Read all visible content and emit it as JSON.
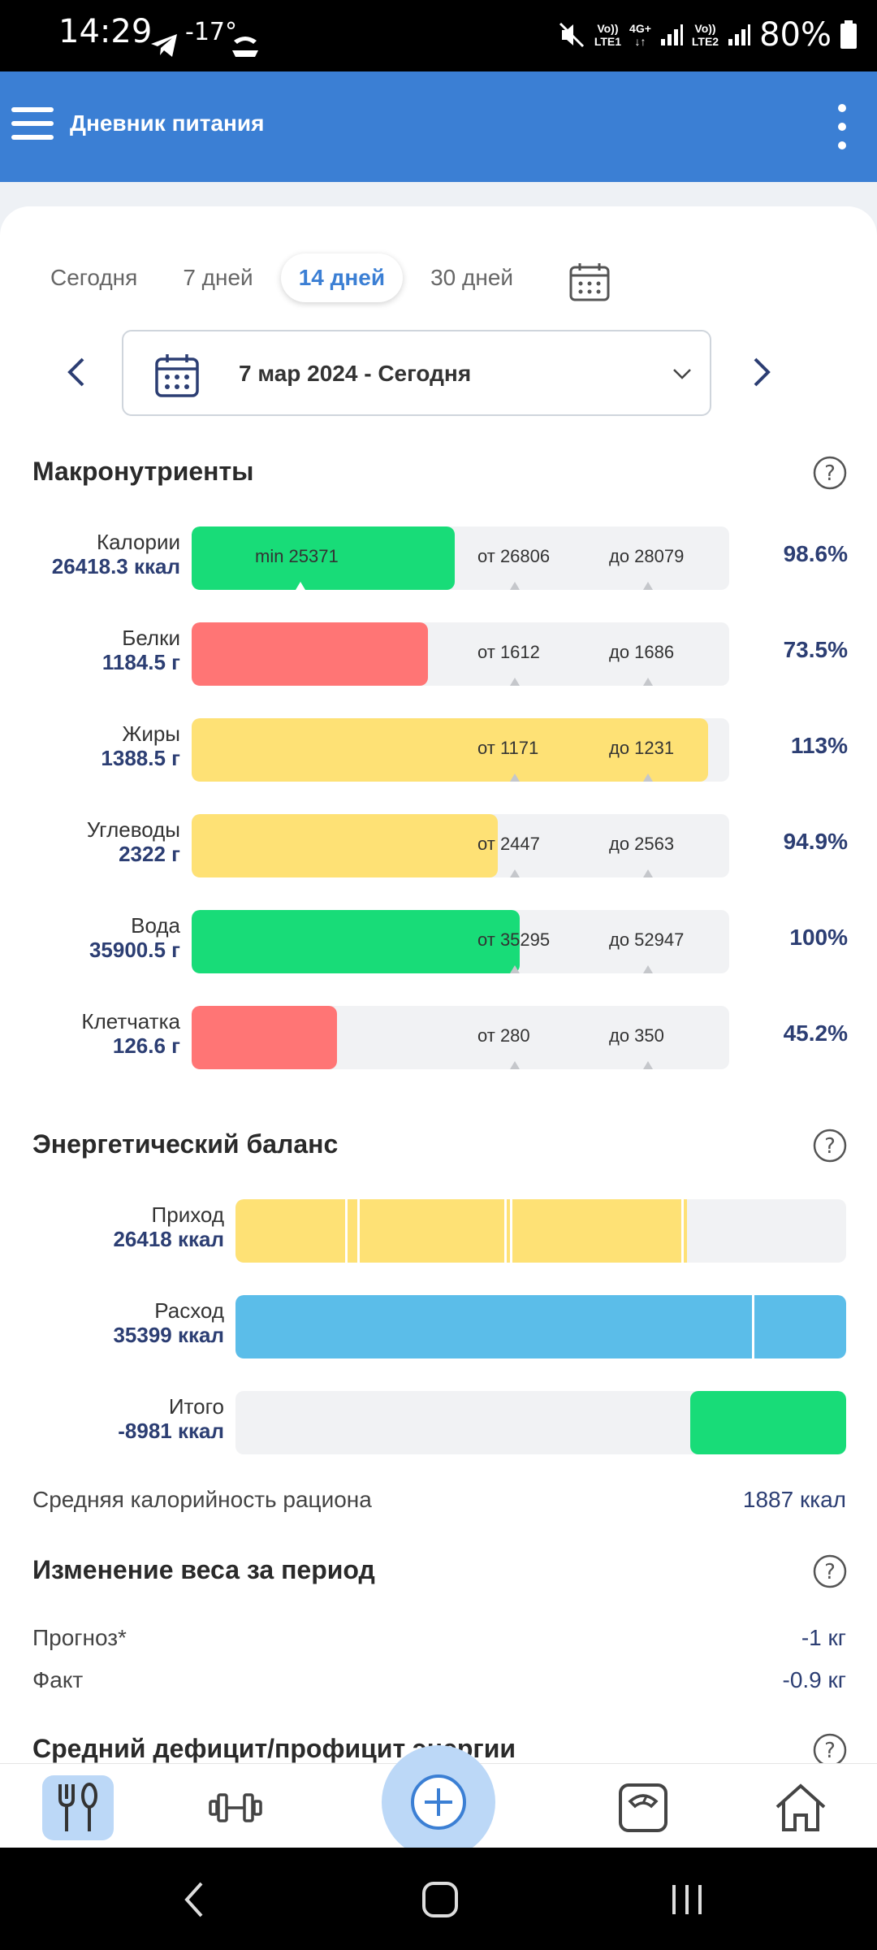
{
  "status": {
    "time": "14:29",
    "temp": "-17°",
    "lte1_top": "Vo))",
    "lte1_bottom": "LTE1",
    "net_top": "4G+",
    "net_bottom": "↓↑",
    "lte2_top": "Vo))",
    "lte2_bottom": "LTE2",
    "battery": "80%"
  },
  "appbar": {
    "title": "Дневник питания"
  },
  "periods": [
    "Сегодня",
    "7 дней",
    "14 дней",
    "30 дней"
  ],
  "period_active": 2,
  "date_range": "7 мар 2024 - Сегодня",
  "macros": {
    "title": "Макронутриенты",
    "rows": [
      {
        "name": "Калории",
        "value": "26418.3 ккал",
        "fill": 0.49,
        "color": "#18dc78",
        "min_label": "min 25371",
        "from": "от 26806",
        "to": "до 28079",
        "pct": "98.6%"
      },
      {
        "name": "Белки",
        "value": "1184.5 г",
        "fill": 0.44,
        "color": "#ff7575",
        "from": "от 1612",
        "to": "до 1686",
        "pct": "73.5%"
      },
      {
        "name": "Жиры",
        "value": "1388.5 г",
        "fill": 0.96,
        "color": "#fee175",
        "from": "от 1171",
        "to": "до 1231",
        "pct": "113%"
      },
      {
        "name": "Углеводы",
        "value": "2322 г",
        "fill": 0.57,
        "color": "#fee175",
        "from": "от 2447",
        "to": "до 2563",
        "pct": "94.9%"
      },
      {
        "name": "Вода",
        "value": "35900.5 г",
        "fill": 0.61,
        "color": "#18dc78",
        "from": "от 35295",
        "to": "до 52947",
        "pct": "100%"
      },
      {
        "name": "Клетчатка",
        "value": "126.6 г",
        "fill": 0.27,
        "color": "#ff7575",
        "from": "от 280",
        "to": "до 350",
        "pct": "45.2%"
      }
    ]
  },
  "energy": {
    "title": "Энергетический баланс",
    "rows": [
      {
        "name": "Приход",
        "value": "26418 ккал",
        "color": "#fee175",
        "start": 0,
        "end": 0.74,
        "dividers": [
          0.18,
          0.2,
          0.44,
          0.45,
          0.73
        ]
      },
      {
        "name": "Расход",
        "value": "35399 ккал",
        "color": "#5bbde9",
        "start": 0,
        "end": 1.0,
        "dividers": [
          0.846
        ]
      },
      {
        "name": "Итого",
        "value": "-8981 ккал",
        "color": "#18dc78",
        "start": 0.745,
        "end": 1.0,
        "dividers": []
      }
    ],
    "avg_label": "Средняя калорийность рациона",
    "avg_value": "1887 ккал"
  },
  "weight": {
    "title": "Изменение веса за период",
    "forecast_label": "Прогноз*",
    "forecast_value": "-1 кг",
    "fact_label": "Факт",
    "fact_value": "-0.9 кг"
  },
  "deficit": {
    "title": "Средний дефицит/профицит энергии"
  },
  "colors": {
    "accent": "#3b7fd4",
    "green": "#18dc78",
    "red": "#ff7575",
    "yellow": "#fee175",
    "blue": "#5bbde9"
  },
  "icons": [
    "menu-icon",
    "more-vert-icon",
    "calendar-icon",
    "chevron-left-icon",
    "chevron-right-icon",
    "chevron-down-icon",
    "help-icon",
    "fork-knife-icon",
    "dumbbell-icon",
    "plus-circle-icon",
    "scale-icon",
    "home-icon"
  ]
}
